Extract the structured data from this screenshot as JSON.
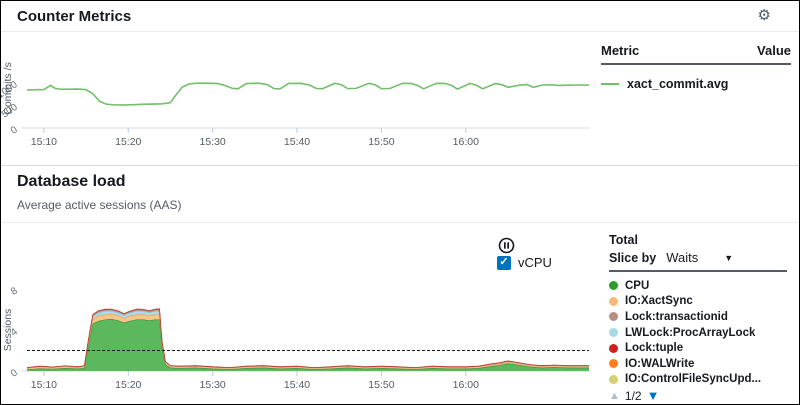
{
  "icons": {
    "gear": "⚙",
    "caret_down": "▼",
    "page_up": "▲",
    "page_down": "▼",
    "check": "✓"
  },
  "header": {
    "title": "Counter Metrics"
  },
  "counter_section": {
    "legend": {
      "metric_header": "Metric",
      "value_header": "Value",
      "items": [
        {
          "label": "xact_commit.avg",
          "color": "#72bf6a",
          "value": ""
        }
      ]
    }
  },
  "load_section": {
    "title": "Database load",
    "subtitle": "Average active sessions (AAS)",
    "vcpu": {
      "label": "vCPU",
      "checked": true
    },
    "controls": {
      "total_label": "Total",
      "slice_by_label": "Slice by",
      "slice_value": "Waits"
    },
    "legend": {
      "items": [
        {
          "label": "CPU",
          "color": "#2aa02a"
        },
        {
          "label": "IO:XactSync",
          "color": "#f8b877"
        },
        {
          "label": "Lock:transactionid",
          "color": "#b78d84"
        },
        {
          "label": "LWLock:ProcArrayLock",
          "color": "#a5d9e5"
        },
        {
          "label": "Lock:tuple",
          "color": "#d21f1f"
        },
        {
          "label": "IO:WALWrite",
          "color": "#fd7d1f"
        },
        {
          "label": "IO:ControlFileSyncUpd...",
          "color": "#d6cf72"
        }
      ],
      "pagination": {
        "text": "1/2"
      }
    }
  },
  "chart_data": [
    {
      "type": "line",
      "title": "Counter Metrics",
      "ylabel": "Commits /s",
      "xlabel": "",
      "xlim": [
        0,
        66.6
      ],
      "ylim": [
        0,
        1750
      ],
      "y_ticks": [
        0,
        500,
        1000
      ],
      "x_tick_minutes": [
        2,
        12,
        22,
        32,
        42,
        52
      ],
      "x_tick_labels": [
        "15:10",
        "15:20",
        "15:30",
        "15:40",
        "15:50",
        "16:00"
      ],
      "grid": false,
      "legend_position": "right",
      "series": [
        {
          "name": "xact_commit.avg",
          "color": "#72bf6a",
          "x": [
            0,
            1,
            2,
            2.8,
            3.3,
            4,
            5,
            6,
            7,
            7.8,
            8.6,
            9.4,
            10.2,
            11,
            12,
            13,
            14,
            15,
            16,
            17,
            17.6,
            18.4,
            19.2,
            20,
            21,
            22.5,
            23.5,
            24.3,
            25,
            26,
            27.5,
            28.5,
            29.3,
            30,
            31,
            32.5,
            33.5,
            34.3,
            35,
            36.5,
            37.3,
            38,
            39,
            40.5,
            41.3,
            42,
            43,
            44.5,
            45.5,
            46.3,
            47,
            48.5,
            49.5,
            50.3,
            51,
            52.5,
            53.3,
            54,
            55.5,
            56.3,
            57,
            58.5,
            59.3,
            60,
            61,
            62,
            63,
            64,
            65,
            66.6
          ],
          "y": [
            840,
            848,
            852,
            945,
            880,
            858,
            860,
            862,
            850,
            760,
            590,
            528,
            515,
            510,
            512,
            520,
            528,
            530,
            535,
            560,
            720,
            905,
            975,
            990,
            992,
            988,
            940,
            880,
            868,
            985,
            992,
            960,
            872,
            868,
            988,
            990,
            950,
            875,
            870,
            992,
            955,
            872,
            878,
            990,
            952,
            870,
            875,
            990,
            988,
            940,
            868,
            990,
            988,
            945,
            862,
            988,
            945,
            868,
            985,
            960,
            902,
            955,
            962,
            900,
            950,
            958,
            942,
            948,
            950,
            952
          ]
        }
      ]
    },
    {
      "type": "area",
      "stacked": true,
      "title": "Database load",
      "ylabel": "Sessions",
      "xlabel": "",
      "xlim": [
        0,
        66.6
      ],
      "ylim": [
        0,
        8
      ],
      "y_ticks": [
        0,
        4,
        8
      ],
      "x_tick_minutes": [
        2,
        12,
        22,
        32,
        42,
        52
      ],
      "x_tick_labels": [
        "15:10",
        "15:20",
        "15:30",
        "15:40",
        "15:50",
        "16:00"
      ],
      "grid": false,
      "vcpu_line": 2,
      "x": [
        0,
        1.5,
        3,
        4.5,
        6,
        6.8,
        7.3,
        7.8,
        8.5,
        9.3,
        10,
        10.8,
        11.5,
        12.2,
        13,
        13.8,
        14.5,
        15.2,
        15.7,
        16,
        16.4,
        17,
        18,
        20,
        22,
        24,
        26,
        28,
        30,
        32,
        34,
        36,
        38,
        40,
        42,
        44,
        46,
        48,
        50,
        52,
        53.5,
        55,
        56,
        57,
        58,
        59.5,
        61,
        62.5,
        64,
        66.6
      ],
      "series": [
        {
          "name": "CPU",
          "fill": "#5cb85c",
          "edge": "#3d9b3d",
          "values": [
            0.12,
            0.22,
            0.18,
            0.25,
            0.2,
            0.25,
            2.5,
            4.6,
            4.85,
            5.0,
            5.05,
            4.9,
            4.7,
            4.85,
            5.0,
            5.0,
            4.9,
            5.0,
            5.0,
            2.2,
            0.6,
            0.3,
            0.25,
            0.3,
            0.2,
            0.15,
            0.25,
            0.3,
            0.2,
            0.25,
            0.15,
            0.2,
            0.3,
            0.2,
            0.25,
            0.2,
            0.15,
            0.25,
            0.2,
            0.2,
            0.25,
            0.45,
            0.55,
            0.7,
            0.6,
            0.4,
            0.3,
            0.35,
            0.3,
            0.3
          ]
        },
        {
          "name": "IO:XactSync",
          "fill": "#f9c489",
          "edge": "#eaa55f",
          "values": [
            0.15,
            0.18,
            0.15,
            0.18,
            0.15,
            0.18,
            0.35,
            0.45,
            0.5,
            0.5,
            0.5,
            0.5,
            0.45,
            0.5,
            0.5,
            0.5,
            0.5,
            0.5,
            0.5,
            0.4,
            0.2,
            0.15,
            0.15,
            0.15,
            0.15,
            0.12,
            0.15,
            0.15,
            0.15,
            0.15,
            0.12,
            0.15,
            0.15,
            0.15,
            0.15,
            0.15,
            0.12,
            0.15,
            0.15,
            0.15,
            0.15,
            0.15,
            0.15,
            0.15,
            0.15,
            0.15,
            0.15,
            0.15,
            0.15,
            0.15
          ]
        },
        {
          "name": "LWLock:ProcArrayLock",
          "fill": "#abdbe8",
          "edge": "#7fc0d8",
          "values": [
            0.04,
            0.05,
            0.04,
            0.05,
            0.04,
            0.05,
            0.2,
            0.3,
            0.35,
            0.35,
            0.32,
            0.3,
            0.3,
            0.32,
            0.35,
            0.33,
            0.3,
            0.33,
            0.35,
            0.2,
            0.08,
            0.05,
            0.05,
            0.05,
            0.04,
            0.04,
            0.05,
            0.05,
            0.04,
            0.05,
            0.04,
            0.04,
            0.05,
            0.04,
            0.05,
            0.04,
            0.04,
            0.05,
            0.04,
            0.04,
            0.05,
            0.06,
            0.06,
            0.08,
            0.06,
            0.05,
            0.05,
            0.05,
            0.05,
            0.05
          ]
        },
        {
          "name": "Lock:transactionid",
          "fill": "#c39b92",
          "edge": "#a87c72",
          "values": [
            0.02,
            0.02,
            0.02,
            0.02,
            0.02,
            0.03,
            0.08,
            0.12,
            0.14,
            0.13,
            0.12,
            0.12,
            0.11,
            0.12,
            0.13,
            0.12,
            0.12,
            0.13,
            0.14,
            0.08,
            0.03,
            0.02,
            0.02,
            0.02,
            0.02,
            0.02,
            0.02,
            0.02,
            0.02,
            0.02,
            0.02,
            0.02,
            0.02,
            0.02,
            0.02,
            0.02,
            0.02,
            0.02,
            0.02,
            0.02,
            0.02,
            0.03,
            0.03,
            0.04,
            0.03,
            0.02,
            0.02,
            0.02,
            0.02,
            0.02
          ]
        },
        {
          "name": "Lock:tuple",
          "fill": "#cf3f2a",
          "edge": "#c03a23",
          "values": [
            0,
            0,
            0,
            0,
            0,
            0,
            0.02,
            0.04,
            0.05,
            0.05,
            0.04,
            0.04,
            0.04,
            0.05,
            0.06,
            0.06,
            0.06,
            0.07,
            0.08,
            0.03,
            0,
            0,
            0,
            0,
            0,
            0,
            0,
            0,
            0,
            0,
            0,
            0,
            0,
            0,
            0,
            0,
            0,
            0,
            0,
            0,
            0,
            0,
            0.01,
            0.01,
            0.01,
            0,
            0,
            0,
            0,
            0
          ]
        }
      ]
    }
  ]
}
